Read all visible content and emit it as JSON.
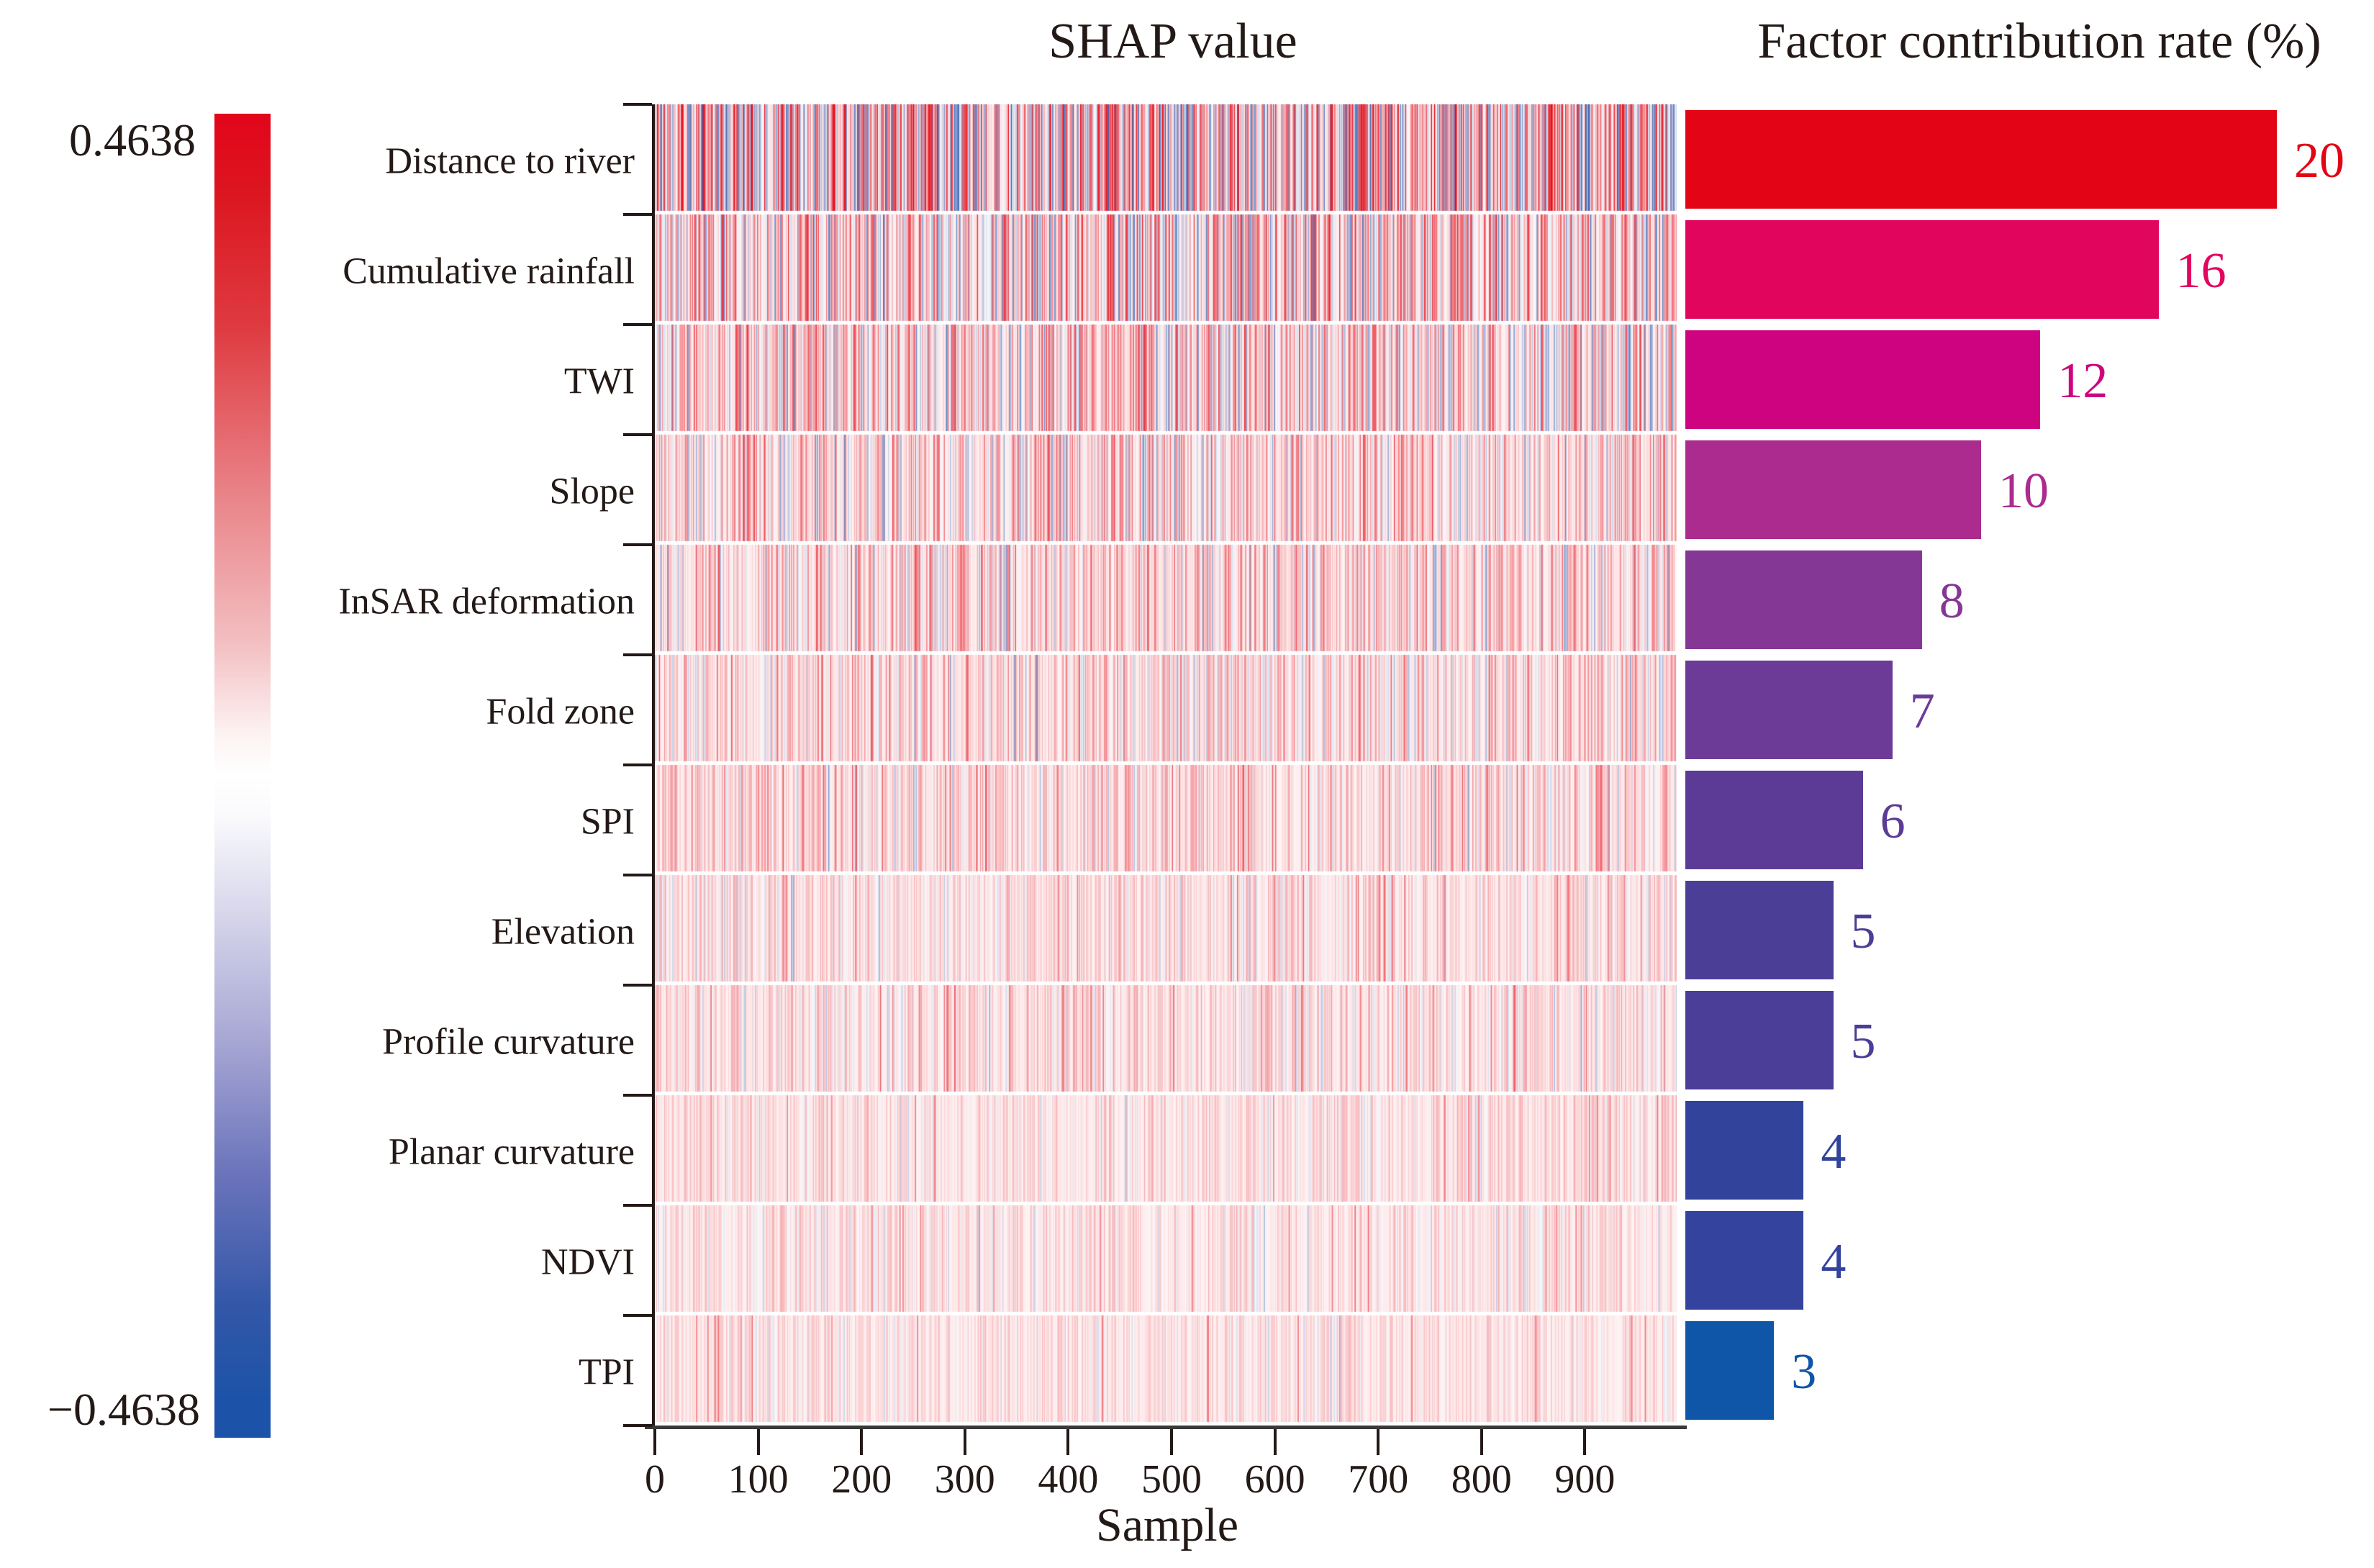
{
  "titles": {
    "heatmap": "SHAP value",
    "bars": "Factor contribution rate (%)",
    "xaxis": "Sample"
  },
  "colorbar": {
    "max_label": "0.4638",
    "min_label": "−0.4638",
    "top_color": "#e2051a",
    "middle_color": "#ffffff",
    "bottom_color": "#1b53a8"
  },
  "chart_data": [
    {
      "type": "heatmap",
      "title": "SHAP value",
      "xlabel": "Sample",
      "x_ticks": [
        0,
        100,
        200,
        300,
        400,
        500,
        600,
        700,
        800,
        900
      ],
      "x_range": [
        0,
        990
      ],
      "value_range": [
        -0.4638,
        0.4638
      ],
      "colorbar": {
        "max": "0.4638",
        "min": "−0.4638"
      },
      "rows": [
        "Distance to river",
        "Cumulative rainfall",
        "TWI",
        "Slope",
        "InSAR deformation",
        "Fold zone",
        "SPI",
        "Elevation",
        "Profile curvature",
        "Planar curvature",
        "NDVI",
        "TPI"
      ],
      "row_relative_intensity": [
        1.0,
        0.8,
        0.7,
        0.55,
        0.5,
        0.45,
        0.4,
        0.34,
        0.34,
        0.3,
        0.28,
        0.24
      ],
      "row_negative_fraction": [
        0.4,
        0.33,
        0.26,
        0.22,
        0.18,
        0.16,
        0.14,
        0.12,
        0.12,
        0.1,
        0.1,
        0.08
      ],
      "legend_position": "left",
      "grid": false
    },
    {
      "type": "bar",
      "orientation": "horizontal",
      "title": "Factor contribution rate (%)",
      "categories": [
        "Distance to river",
        "Cumulative rainfall",
        "TWI",
        "Slope",
        "InSAR deformation",
        "Fold zone",
        "SPI",
        "Elevation",
        "Profile curvature",
        "Planar curvature",
        "NDVI",
        "TPI"
      ],
      "values": [
        20,
        16,
        12,
        10,
        8,
        7,
        6,
        5,
        5,
        4,
        4,
        3
      ],
      "value_labels": [
        "20",
        "16",
        "12",
        "10",
        "8",
        "7",
        "6",
        "5",
        "5",
        "4",
        "4",
        "3"
      ],
      "bar_colors": [
        "#e30515",
        "#e2055e",
        "#cd0380",
        "#ab2b8e",
        "#853795",
        "#6c3a97",
        "#5b3b95",
        "#4b3e96",
        "#4a3e98",
        "#32439c",
        "#34439e",
        "#0f55a8"
      ],
      "xlim": [
        0,
        20
      ]
    }
  ]
}
